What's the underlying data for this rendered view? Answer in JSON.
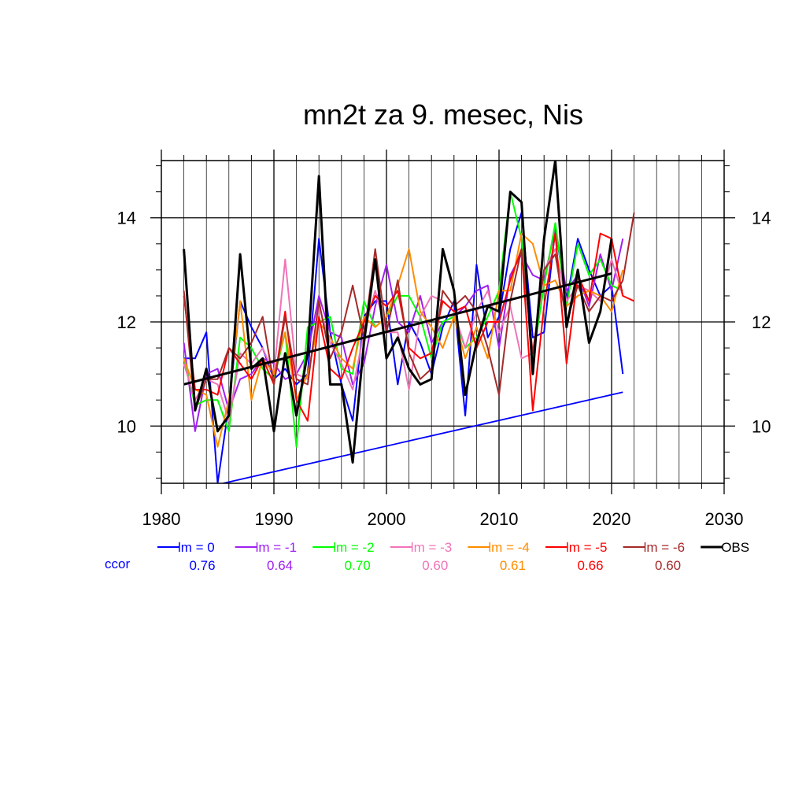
{
  "chart_data": {
    "type": "line",
    "title": "mn2t za 9. mesec, Nis",
    "xlabel": "",
    "ylabel": "",
    "xlim": [
      1980,
      2030
    ],
    "ylim": [
      8.9,
      15.1
    ],
    "x_ticks": [
      1980,
      1990,
      2000,
      2010,
      2020,
      2030
    ],
    "x_tick_labels": [
      "1980",
      "1990",
      "2000",
      "2010",
      "2020",
      "2030"
    ],
    "y_ticks": [
      10,
      12,
      14
    ],
    "y_tick_labels": [
      "10",
      "12",
      "14"
    ],
    "grid": true,
    "legend_position": "bottom",
    "ccor_label": "ccor",
    "series": [
      {
        "name": "lm = 0",
        "color": "#0000ff",
        "ccor": "0.76",
        "x_start": 1982,
        "values": [
          11.3,
          11.3,
          11.8,
          8.9,
          10.4,
          12.4,
          11.9,
          11.5,
          10.9,
          11.1,
          10.8,
          11.0,
          13.6,
          11.8,
          10.8,
          10.1,
          12.1,
          12.4,
          12.4,
          10.8,
          12.0,
          11.6,
          11.0,
          11.9,
          12.4,
          10.2,
          13.1,
          11.7,
          12.1,
          13.4,
          14.1,
          11.7,
          11.8,
          13.8,
          12.4,
          13.6,
          13.0,
          12.5,
          12.7,
          11.0
        ],
        "trend": [
          [
            1985.5,
            8.9
          ],
          [
            2021,
            10.65
          ]
        ]
      },
      {
        "name": "lm = -1",
        "color": "#a020f0",
        "ccor": "0.64",
        "x_start": 1982,
        "values": [
          11.6,
          9.9,
          11.0,
          11.1,
          10.3,
          10.9,
          11.0,
          11.3,
          11.2,
          10.9,
          11.0,
          11.4,
          12.5,
          11.8,
          11.7,
          10.8,
          11.2,
          12.3,
          13.1,
          12.0,
          11.8,
          12.5,
          11.6,
          12.0,
          12.1,
          12.3,
          12.6,
          12.7,
          11.5,
          12.9,
          13.3,
          12.9,
          12.8,
          13.8,
          12.6,
          12.9,
          12.3,
          13.3,
          12.6,
          13.6
        ],
        "trend": null
      },
      {
        "name": "lm = -2",
        "color": "#00ff00",
        "ccor": "0.70",
        "x_start": 1982,
        "values": [
          11.3,
          10.4,
          10.5,
          10.5,
          9.9,
          11.7,
          11.5,
          11.1,
          10.9,
          11.8,
          9.6,
          11.9,
          12.0,
          12.1,
          11.1,
          11.0,
          12.4,
          11.9,
          12.1,
          12.5,
          12.5,
          12.1,
          11.3,
          12.0,
          12.1,
          11.5,
          11.7,
          12.1,
          12.6,
          14.5,
          13.6,
          11.3,
          12.7,
          13.9,
          12.3,
          13.5,
          12.9,
          13.2,
          12.7,
          12.6
        ],
        "trend": null
      },
      {
        "name": "lm = -3",
        "color": "#f074b8",
        "ccor": "0.60",
        "x_start": 1982,
        "values": [
          11.2,
          10.5,
          10.9,
          10.8,
          10.1,
          11.4,
          11.2,
          11.5,
          11.0,
          13.2,
          11.0,
          10.9,
          12.3,
          11.6,
          11.2,
          10.7,
          11.8,
          12.6,
          11.8,
          11.8,
          10.7,
          12.1,
          12.5,
          12.4,
          12.2,
          11.5,
          12.2,
          12.6,
          11.8,
          12.3,
          11.3,
          11.4,
          13.0,
          13.4,
          12.4,
          12.7,
          12.6,
          12.4,
          13.2,
          12.5
        ],
        "trend": null
      },
      {
        "name": "lm = -4",
        "color": "#ff8c00",
        "ccor": "0.61",
        "x_start": 1982,
        "values": [
          11.3,
          10.7,
          10.6,
          9.6,
          10.5,
          12.4,
          10.5,
          11.3,
          11.0,
          11.8,
          10.5,
          11.0,
          12.0,
          11.7,
          11.3,
          11.1,
          12.1,
          11.9,
          12.1,
          12.7,
          13.4,
          12.2,
          11.9,
          11.5,
          12.1,
          11.3,
          11.9,
          11.3,
          12.6,
          12.6,
          13.7,
          13.5,
          12.7,
          12.8,
          12.3,
          12.5,
          12.6,
          12.5,
          12.2,
          13.0
        ],
        "trend": null
      },
      {
        "name": "lm = -5",
        "color": "#ff0000",
        "ccor": "0.66",
        "x_start": 1982,
        "values": [
          12.5,
          10.7,
          10.7,
          10.6,
          11.5,
          11.2,
          10.9,
          11.3,
          10.8,
          12.2,
          10.5,
          10.1,
          12.1,
          11.1,
          10.9,
          11.5,
          12.0,
          12.5,
          12.3,
          12.6,
          11.5,
          11.3,
          11.4,
          12.4,
          12.2,
          12.3,
          11.5,
          12.0,
          12.0,
          12.8,
          13.4,
          10.3,
          12.3,
          13.7,
          11.2,
          12.9,
          12.4,
          13.7,
          13.6,
          12.5,
          12.4
        ],
        "trend": null
      },
      {
        "name": "lm = -6",
        "color": "#a52a2a",
        "ccor": "0.60",
        "x_start": 1982,
        "values": [
          12.6,
          10.3,
          10.9,
          10.9,
          11.5,
          11.3,
          11.6,
          12.1,
          10.8,
          12.1,
          10.9,
          10.8,
          12.4,
          11.3,
          11.8,
          12.7,
          11.7,
          13.4,
          11.8,
          12.8,
          11.4,
          10.9,
          11.1,
          12.6,
          12.3,
          12.5,
          12.2,
          11.5,
          10.6,
          12.4,
          13.4,
          11.4,
          13.0,
          13.3,
          12.0,
          12.7,
          12.2,
          12.5,
          12.4,
          12.8,
          14.1
        ],
        "trend": null
      },
      {
        "name": "OBS",
        "color": "#000000",
        "ccor": "",
        "x_start": 1982,
        "values": [
          13.4,
          10.3,
          11.1,
          9.9,
          10.2,
          13.3,
          11.1,
          11.3,
          9.9,
          11.4,
          10.2,
          11.4,
          14.8,
          10.8,
          10.8,
          9.3,
          11.6,
          13.2,
          11.3,
          11.7,
          11.1,
          10.8,
          10.9,
          13.4,
          12.6,
          10.6,
          11.6,
          12.3,
          12.2,
          14.5,
          14.3,
          11.0,
          13.6,
          15.1,
          11.9,
          13.0,
          11.6,
          12.2,
          13.6
        ],
        "trend": [
          [
            1982,
            10.8
          ],
          [
            2020,
            12.93
          ]
        ]
      }
    ]
  }
}
